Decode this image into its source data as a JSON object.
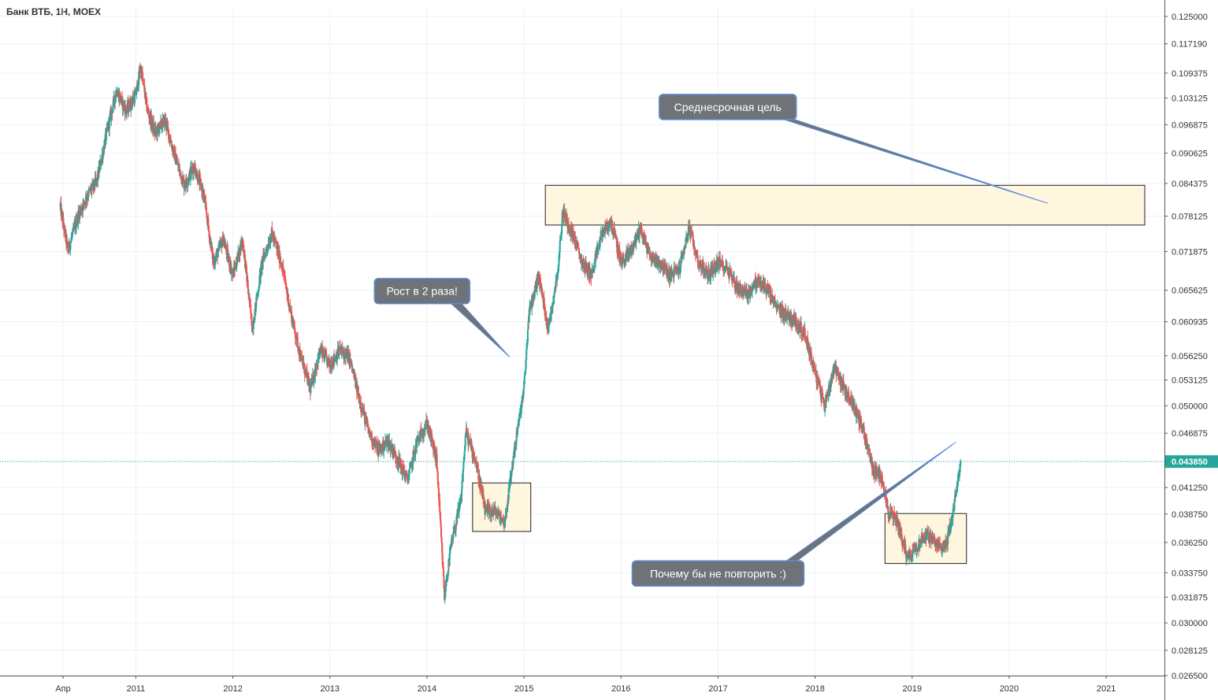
{
  "header": {
    "ticker": "Банк ВТБ, 1Н, MOEX"
  },
  "chart_data": {
    "type": "candlestick",
    "title": "Банк ВТБ, 1Н, MOEX",
    "y_scale": "log",
    "ylim": [
      0.0265,
      0.128
    ],
    "xlim": [
      2009.6,
      2021.6
    ],
    "grid": true,
    "y_ticks": [
      "0.125000",
      "0.117190",
      "0.109375",
      "0.103125",
      "0.096875",
      "0.090625",
      "0.084375",
      "0.078125",
      "0.071875",
      "0.065625",
      "0.060935",
      "0.056250",
      "0.053125",
      "0.050000",
      "0.046875",
      "0.043850",
      "0.041250",
      "0.038750",
      "0.036250",
      "0.033750",
      "0.031875",
      "0.030000",
      "0.028125",
      "0.026500"
    ],
    "x_ticks": [
      {
        "label": "Апр",
        "t": 2010.25
      },
      {
        "label": "2011",
        "t": 2011
      },
      {
        "label": "2012",
        "t": 2012
      },
      {
        "label": "2013",
        "t": 2013
      },
      {
        "label": "2014",
        "t": 2014
      },
      {
        "label": "2015",
        "t": 2015
      },
      {
        "label": "2016",
        "t": 2016
      },
      {
        "label": "2017",
        "t": 2017
      },
      {
        "label": "2018",
        "t": 2018
      },
      {
        "label": "2019",
        "t": 2019
      },
      {
        "label": "2020",
        "t": 2020
      },
      {
        "label": "2021",
        "t": 2021
      }
    ],
    "last_price": {
      "label": "0.043850",
      "value": 0.04385
    },
    "colors": {
      "up": "#26a69a",
      "down": "#ef5350",
      "last": "#26a69a",
      "note_bg": "#6f7378",
      "note_border": "#5b8bd6",
      "zone_fill": "#fff6e0",
      "grid": "#eef1f5"
    },
    "price_path": [
      [
        2010.22,
        0.08
      ],
      [
        2010.3,
        0.072
      ],
      [
        2010.4,
        0.078
      ],
      [
        2010.5,
        0.082
      ],
      [
        2010.6,
        0.085
      ],
      [
        2010.7,
        0.095
      ],
      [
        2010.8,
        0.105
      ],
      [
        2010.9,
        0.1
      ],
      [
        2011.0,
        0.104
      ],
      [
        2011.05,
        0.111
      ],
      [
        2011.12,
        0.1
      ],
      [
        2011.2,
        0.095
      ],
      [
        2011.3,
        0.098
      ],
      [
        2011.4,
        0.09
      ],
      [
        2011.5,
        0.084
      ],
      [
        2011.6,
        0.088
      ],
      [
        2011.7,
        0.082
      ],
      [
        2011.8,
        0.07
      ],
      [
        2011.9,
        0.074
      ],
      [
        2012.0,
        0.068
      ],
      [
        2012.1,
        0.074
      ],
      [
        2012.2,
        0.06
      ],
      [
        2012.3,
        0.07
      ],
      [
        2012.4,
        0.075
      ],
      [
        2012.5,
        0.07
      ],
      [
        2012.6,
        0.062
      ],
      [
        2012.7,
        0.056
      ],
      [
        2012.8,
        0.052
      ],
      [
        2012.9,
        0.057
      ],
      [
        2013.0,
        0.055
      ],
      [
        2013.1,
        0.057
      ],
      [
        2013.2,
        0.056
      ],
      [
        2013.3,
        0.051
      ],
      [
        2013.4,
        0.047
      ],
      [
        2013.5,
        0.045
      ],
      [
        2013.6,
        0.046
      ],
      [
        2013.7,
        0.044
      ],
      [
        2013.8,
        0.042
      ],
      [
        2013.9,
        0.046
      ],
      [
        2014.0,
        0.048
      ],
      [
        2014.1,
        0.044
      ],
      [
        2014.18,
        0.032
      ],
      [
        2014.25,
        0.036
      ],
      [
        2014.35,
        0.04
      ],
      [
        2014.4,
        0.047
      ],
      [
        2014.5,
        0.044
      ],
      [
        2014.6,
        0.039
      ],
      [
        2014.7,
        0.039
      ],
      [
        2014.8,
        0.038
      ],
      [
        2014.9,
        0.045
      ],
      [
        2015.0,
        0.052
      ],
      [
        2015.05,
        0.062
      ],
      [
        2015.15,
        0.068
      ],
      [
        2015.25,
        0.06
      ],
      [
        2015.35,
        0.069
      ],
      [
        2015.4,
        0.079
      ],
      [
        2015.5,
        0.075
      ],
      [
        2015.6,
        0.07
      ],
      [
        2015.7,
        0.068
      ],
      [
        2015.8,
        0.075
      ],
      [
        2015.9,
        0.077
      ],
      [
        2016.0,
        0.07
      ],
      [
        2016.1,
        0.072
      ],
      [
        2016.2,
        0.076
      ],
      [
        2016.3,
        0.071
      ],
      [
        2016.4,
        0.07
      ],
      [
        2016.5,
        0.068
      ],
      [
        2016.6,
        0.069
      ],
      [
        2016.7,
        0.076
      ],
      [
        2016.8,
        0.07
      ],
      [
        2016.9,
        0.068
      ],
      [
        2017.0,
        0.07
      ],
      [
        2017.1,
        0.069
      ],
      [
        2017.2,
        0.066
      ],
      [
        2017.3,
        0.065
      ],
      [
        2017.4,
        0.067
      ],
      [
        2017.5,
        0.066
      ],
      [
        2017.6,
        0.063
      ],
      [
        2017.7,
        0.062
      ],
      [
        2017.8,
        0.061
      ],
      [
        2017.9,
        0.059
      ],
      [
        2018.0,
        0.054
      ],
      [
        2018.1,
        0.05
      ],
      [
        2018.2,
        0.055
      ],
      [
        2018.3,
        0.052
      ],
      [
        2018.4,
        0.05
      ],
      [
        2018.5,
        0.047
      ],
      [
        2018.55,
        0.045
      ],
      [
        2018.6,
        0.043
      ],
      [
        2018.7,
        0.042
      ],
      [
        2018.75,
        0.039
      ],
      [
        2018.85,
        0.038
      ],
      [
        2018.95,
        0.035
      ],
      [
        2019.05,
        0.036
      ],
      [
        2019.15,
        0.037
      ],
      [
        2019.25,
        0.036
      ],
      [
        2019.35,
        0.036
      ],
      [
        2019.4,
        0.038
      ],
      [
        2019.45,
        0.0405
      ],
      [
        2019.5,
        0.04385
      ]
    ],
    "annotations": [
      {
        "text": "Рост в 2 раза!"
      },
      {
        "text": "Среднесрочная цель"
      },
      {
        "text": "Почему бы не повторить :)"
      }
    ]
  }
}
